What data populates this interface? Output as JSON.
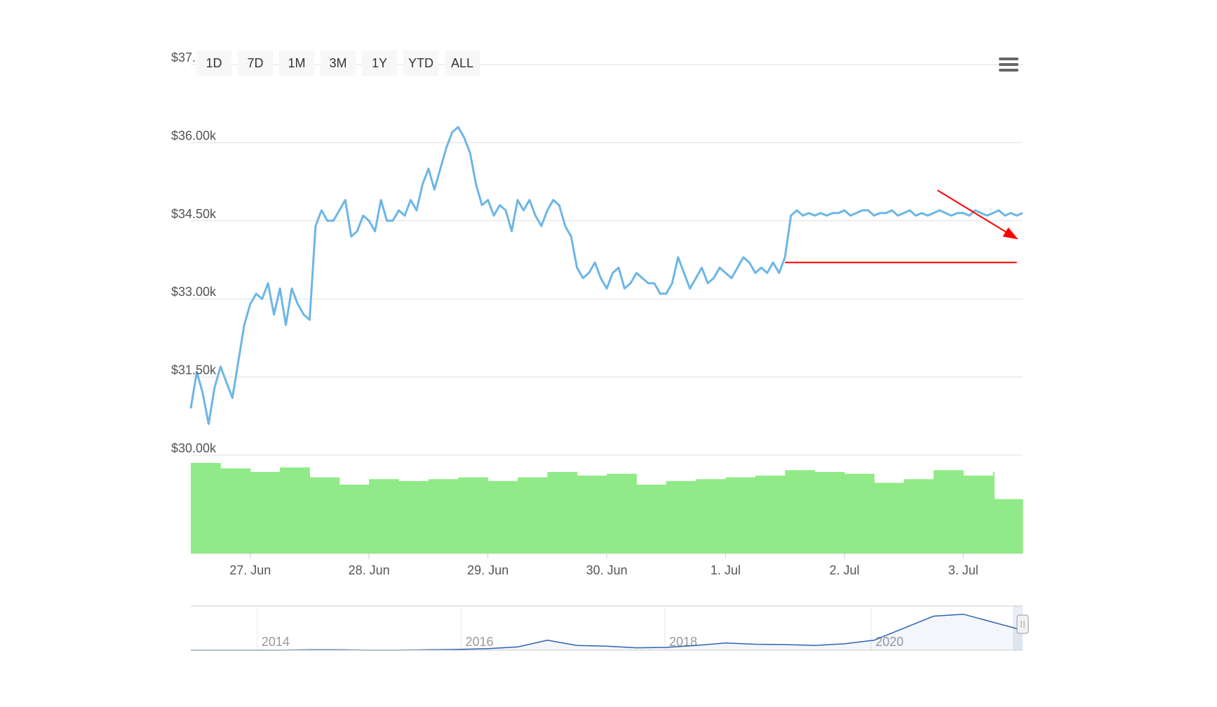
{
  "range_selector": {
    "buttons": [
      "1D",
      "7D",
      "1M",
      "3M",
      "1Y",
      "YTD",
      "ALL"
    ]
  },
  "menu": {
    "icon": "hamburger-menu-icon"
  },
  "chart_data": {
    "type": "line",
    "title": "",
    "colors": {
      "price_line": "#6cb6e6",
      "volume_bars": "#90ea87",
      "annotation": "#ff0000",
      "navigator_line": "#3062b0",
      "grid": "#e0e0e0"
    },
    "y_axis": {
      "ticks": [
        "$30.00k",
        "$31.50k",
        "$33.00k",
        "$34.50k",
        "$36.00k",
        "$37."
      ],
      "tick_values": [
        30000,
        31500,
        33000,
        34500,
        36000,
        37500
      ],
      "ylim": [
        30000,
        37500
      ]
    },
    "x_axis": {
      "ticks": [
        "27. Jun",
        "28. Jun",
        "29. Jun",
        "30. Jun",
        "1. Jul",
        "2. Jul",
        "3. Jul"
      ],
      "tick_positions": [
        0.5,
        1.5,
        2.5,
        3.5,
        4.5,
        5.5,
        6.5
      ],
      "xlim": [
        0,
        7
      ]
    },
    "price_series": {
      "x": [
        0,
        0.05,
        0.1,
        0.15,
        0.2,
        0.25,
        0.3,
        0.35,
        0.4,
        0.45,
        0.5,
        0.55,
        0.6,
        0.65,
        0.7,
        0.75,
        0.8,
        0.85,
        0.9,
        0.95,
        1.0,
        1.05,
        1.1,
        1.15,
        1.2,
        1.25,
        1.3,
        1.35,
        1.4,
        1.45,
        1.5,
        1.55,
        1.6,
        1.65,
        1.7,
        1.75,
        1.8,
        1.85,
        1.9,
        1.95,
        2.0,
        2.05,
        2.1,
        2.15,
        2.2,
        2.25,
        2.3,
        2.35,
        2.4,
        2.45,
        2.5,
        2.55,
        2.6,
        2.65,
        2.7,
        2.75,
        2.8,
        2.85,
        2.9,
        2.95,
        3.0,
        3.05,
        3.1,
        3.15,
        3.2,
        3.25,
        3.3,
        3.35,
        3.4,
        3.45,
        3.5,
        3.55,
        3.6,
        3.65,
        3.7,
        3.75,
        3.8,
        3.85,
        3.9,
        3.95,
        4.0,
        4.05,
        4.1,
        4.15,
        4.2,
        4.25,
        4.3,
        4.35,
        4.4,
        4.45,
        4.5,
        4.55,
        4.6,
        4.65,
        4.7,
        4.75,
        4.8,
        4.85,
        4.9,
        4.95,
        5.0,
        5.05,
        5.1,
        5.15,
        5.2,
        5.25,
        5.3,
        5.35,
        5.4,
        5.45,
        5.5,
        5.55,
        5.6,
        5.65,
        5.7,
        5.75,
        5.8,
        5.85,
        5.9,
        5.95,
        6.0,
        6.05,
        6.1,
        6.15,
        6.2,
        6.25,
        6.3,
        6.35,
        6.4,
        6.45,
        6.5,
        6.55,
        6.6,
        6.65,
        6.7,
        6.75,
        6.8,
        6.85,
        6.9,
        6.95,
        7.0
      ],
      "y": [
        30900,
        31600,
        31200,
        30600,
        31300,
        31700,
        31400,
        31100,
        31800,
        32500,
        32900,
        33100,
        33000,
        33300,
        32700,
        33200,
        32500,
        33200,
        32900,
        32700,
        32600,
        34400,
        34700,
        34500,
        34500,
        34700,
        34900,
        34200,
        34300,
        34600,
        34500,
        34300,
        34900,
        34500,
        34500,
        34700,
        34600,
        34900,
        34700,
        35200,
        35500,
        35100,
        35500,
        35900,
        36200,
        36300,
        36100,
        35800,
        35200,
        34800,
        34900,
        34600,
        34800,
        34700,
        34300,
        34900,
        34700,
        34900,
        34600,
        34400,
        34700,
        34900,
        34800,
        34400,
        34200,
        33600,
        33400,
        33500,
        33700,
        33400,
        33200,
        33500,
        33600,
        33200,
        33300,
        33500,
        33400,
        33300,
        33300,
        33100,
        33100,
        33300,
        33800,
        33500,
        33200,
        33400,
        33600,
        33300,
        33400,
        33600,
        33500,
        33400,
        33600,
        33800,
        33700,
        33500,
        33600,
        33500,
        33700,
        33500,
        33800,
        34600,
        34700,
        34600,
        34650,
        34600,
        34650,
        34600,
        34650,
        34650,
        34700,
        34600,
        34650,
        34700,
        34700,
        34600,
        34650,
        34650,
        34700,
        34600,
        34650,
        34700,
        34600,
        34650,
        34600,
        34650,
        34700,
        34650,
        34600,
        34650,
        34650,
        34600,
        34700,
        34650,
        34600,
        34650,
        34700,
        34600,
        34650,
        34600,
        34650
      ]
    },
    "volume_series": {
      "x": [
        0,
        0.25,
        0.5,
        0.75,
        1.0,
        1.25,
        1.5,
        1.75,
        2.0,
        2.25,
        2.5,
        2.75,
        3.0,
        3.25,
        3.5,
        3.75,
        4.0,
        4.25,
        4.5,
        4.75,
        5.0,
        5.25,
        5.5,
        5.75,
        6.0,
        6.25,
        6.5,
        6.75,
        6.76,
        7.0
      ],
      "values": [
        1.0,
        0.94,
        0.9,
        0.95,
        0.84,
        0.76,
        0.82,
        0.8,
        0.82,
        0.84,
        0.8,
        0.84,
        0.9,
        0.86,
        0.88,
        0.76,
        0.8,
        0.82,
        0.84,
        0.86,
        0.92,
        0.9,
        0.88,
        0.78,
        0.82,
        0.92,
        0.86,
        0.9,
        0.6,
        0.58
      ]
    },
    "annotation": {
      "type": "resistance-line-with-arrow",
      "level": 33700,
      "x_range": [
        5.0,
        6.95
      ]
    },
    "navigator": {
      "x_labels": [
        "2014",
        "2016",
        "2018",
        "2020"
      ],
      "x_positions": [
        0.08,
        0.325,
        0.57,
        0.818
      ],
      "series": [
        0.0,
        0.0,
        0.0,
        0.0,
        0.01,
        0.01,
        0.0,
        0.0,
        0.01,
        0.02,
        0.04,
        0.08,
        0.25,
        0.12,
        0.1,
        0.06,
        0.07,
        0.12,
        0.18,
        0.15,
        0.14,
        0.12,
        0.16,
        0.25,
        0.55,
        0.85,
        0.9,
        0.7,
        0.5
      ]
    }
  }
}
